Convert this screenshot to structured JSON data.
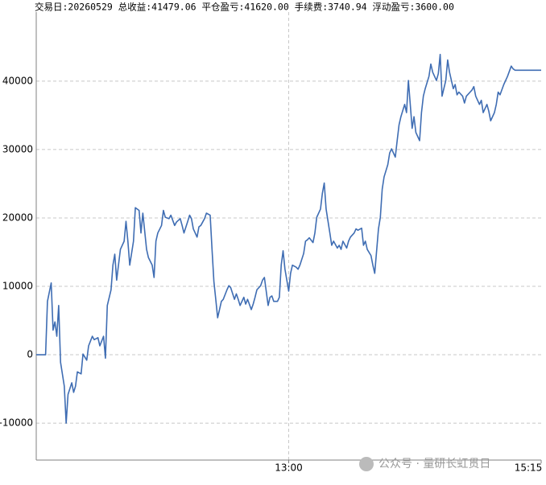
{
  "chart_data": {
    "type": "line",
    "title": "交易日:20260529 总收益:41479.06 平仓盈亏:41620.00 手续费:3740.94 浮动盈亏:3600.00",
    "watermark": "公众号 · 量研长虹贯日",
    "x": [
      0,
      5,
      6,
      8,
      9,
      10,
      11,
      12,
      13,
      15,
      16,
      17,
      19,
      20,
      21,
      22,
      24,
      25,
      27,
      28,
      30,
      31,
      33,
      34,
      36,
      37,
      38,
      40,
      41,
      42,
      43,
      45,
      47,
      48,
      49,
      50,
      52,
      53,
      55,
      56,
      57,
      59,
      60,
      62,
      63,
      64,
      65,
      67,
      68,
      69,
      71,
      72,
      74,
      75,
      77,
      78,
      79,
      81,
      82,
      83,
      84,
      86,
      87,
      88,
      90,
      91,
      93,
      94,
      95,
      96,
      97,
      99,
      100,
      102,
      103,
      104,
      106,
      107,
      108,
      109,
      111,
      112,
      113,
      115,
      116,
      117,
      118,
      120,
      121,
      122,
      124,
      125,
      126,
      127,
      129,
      130,
      131,
      132,
      133,
      135,
      136,
      137,
      139,
      140,
      141,
      143,
      144,
      145,
      146,
      148,
      149,
      150,
      152,
      153,
      154,
      155,
      157,
      158,
      159,
      161,
      162,
      163,
      164,
      166,
      167,
      168,
      170,
      171,
      172,
      174,
      175,
      176,
      177,
      179,
      180,
      181,
      183,
      184,
      185,
      186,
      188,
      189,
      190,
      192,
      193,
      194,
      195,
      197,
      198,
      199,
      201,
      202,
      203,
      205,
      206,
      207,
      208,
      210,
      211,
      212,
      214,
      215,
      216,
      217,
      219,
      220,
      221,
      223,
      224,
      225,
      226,
      228,
      229,
      230,
      232,
      233,
      234,
      235,
      237,
      238,
      239,
      241,
      242,
      243,
      245,
      246,
      247,
      248,
      250,
      251,
      252,
      254,
      255,
      256,
      270
    ],
    "series": [
      {
        "color": "#3f6db3",
        "values": [
          0,
          0,
          7800,
          10500,
          3600,
          4800,
          2700,
          7200,
          -1100,
          -4600,
          -10000,
          -5800,
          -4100,
          -5500,
          -4600,
          -2500,
          -2800,
          100,
          -800,
          1300,
          2700,
          2200,
          2500,
          1300,
          2700,
          -500,
          7200,
          9500,
          13100,
          14700,
          10900,
          15400,
          16600,
          19500,
          16600,
          13100,
          16600,
          21500,
          21100,
          17800,
          20700,
          15400,
          14200,
          13100,
          11300,
          16600,
          17800,
          18900,
          21100,
          20100,
          19900,
          20400,
          18900,
          19400,
          19900,
          18900,
          17800,
          19500,
          20400,
          19900,
          18400,
          17200,
          18700,
          18900,
          19900,
          20700,
          20400,
          15400,
          10700,
          8100,
          5400,
          7800,
          8100,
          9500,
          10100,
          9800,
          8100,
          8900,
          8100,
          7200,
          8400,
          7400,
          8100,
          6600,
          7400,
          8400,
          9500,
          10100,
          10900,
          11300,
          7200,
          8400,
          8600,
          7800,
          7800,
          8400,
          13100,
          15200,
          12500,
          9300,
          11900,
          13100,
          12800,
          12500,
          13100,
          14800,
          16600,
          16800,
          17100,
          16400,
          17800,
          20100,
          21300,
          23600,
          25100,
          21300,
          17800,
          16000,
          16600,
          15600,
          16000,
          15400,
          16600,
          15600,
          16600,
          17200,
          17800,
          18400,
          18200,
          18500,
          16000,
          16600,
          15400,
          14500,
          13100,
          11900,
          18400,
          20100,
          24200,
          26000,
          27800,
          29500,
          30100,
          28900,
          31300,
          33600,
          34800,
          36600,
          35400,
          40100,
          33100,
          34800,
          32500,
          31300,
          35400,
          37800,
          38900,
          40700,
          42500,
          41300,
          40100,
          41100,
          43900,
          37800,
          40100,
          43100,
          41300,
          38900,
          39500,
          38000,
          38400,
          37800,
          36800,
          37800,
          38400,
          38700,
          39200,
          37800,
          36600,
          37200,
          35400,
          36600,
          35600,
          34200,
          35400,
          36600,
          38400,
          38000,
          39500,
          40100,
          40700,
          42200,
          41800,
          41600,
          41600
        ]
      }
    ],
    "xlim": [
      0,
      270
    ],
    "xticks": [
      {
        "value": 135,
        "label": "13:00"
      },
      {
        "value": 270,
        "label": "15:15"
      }
    ],
    "ylim": [
      -15400,
      50100
    ],
    "yticks": [
      -10000,
      0,
      10000,
      20000,
      30000,
      40000
    ],
    "grid": true
  }
}
